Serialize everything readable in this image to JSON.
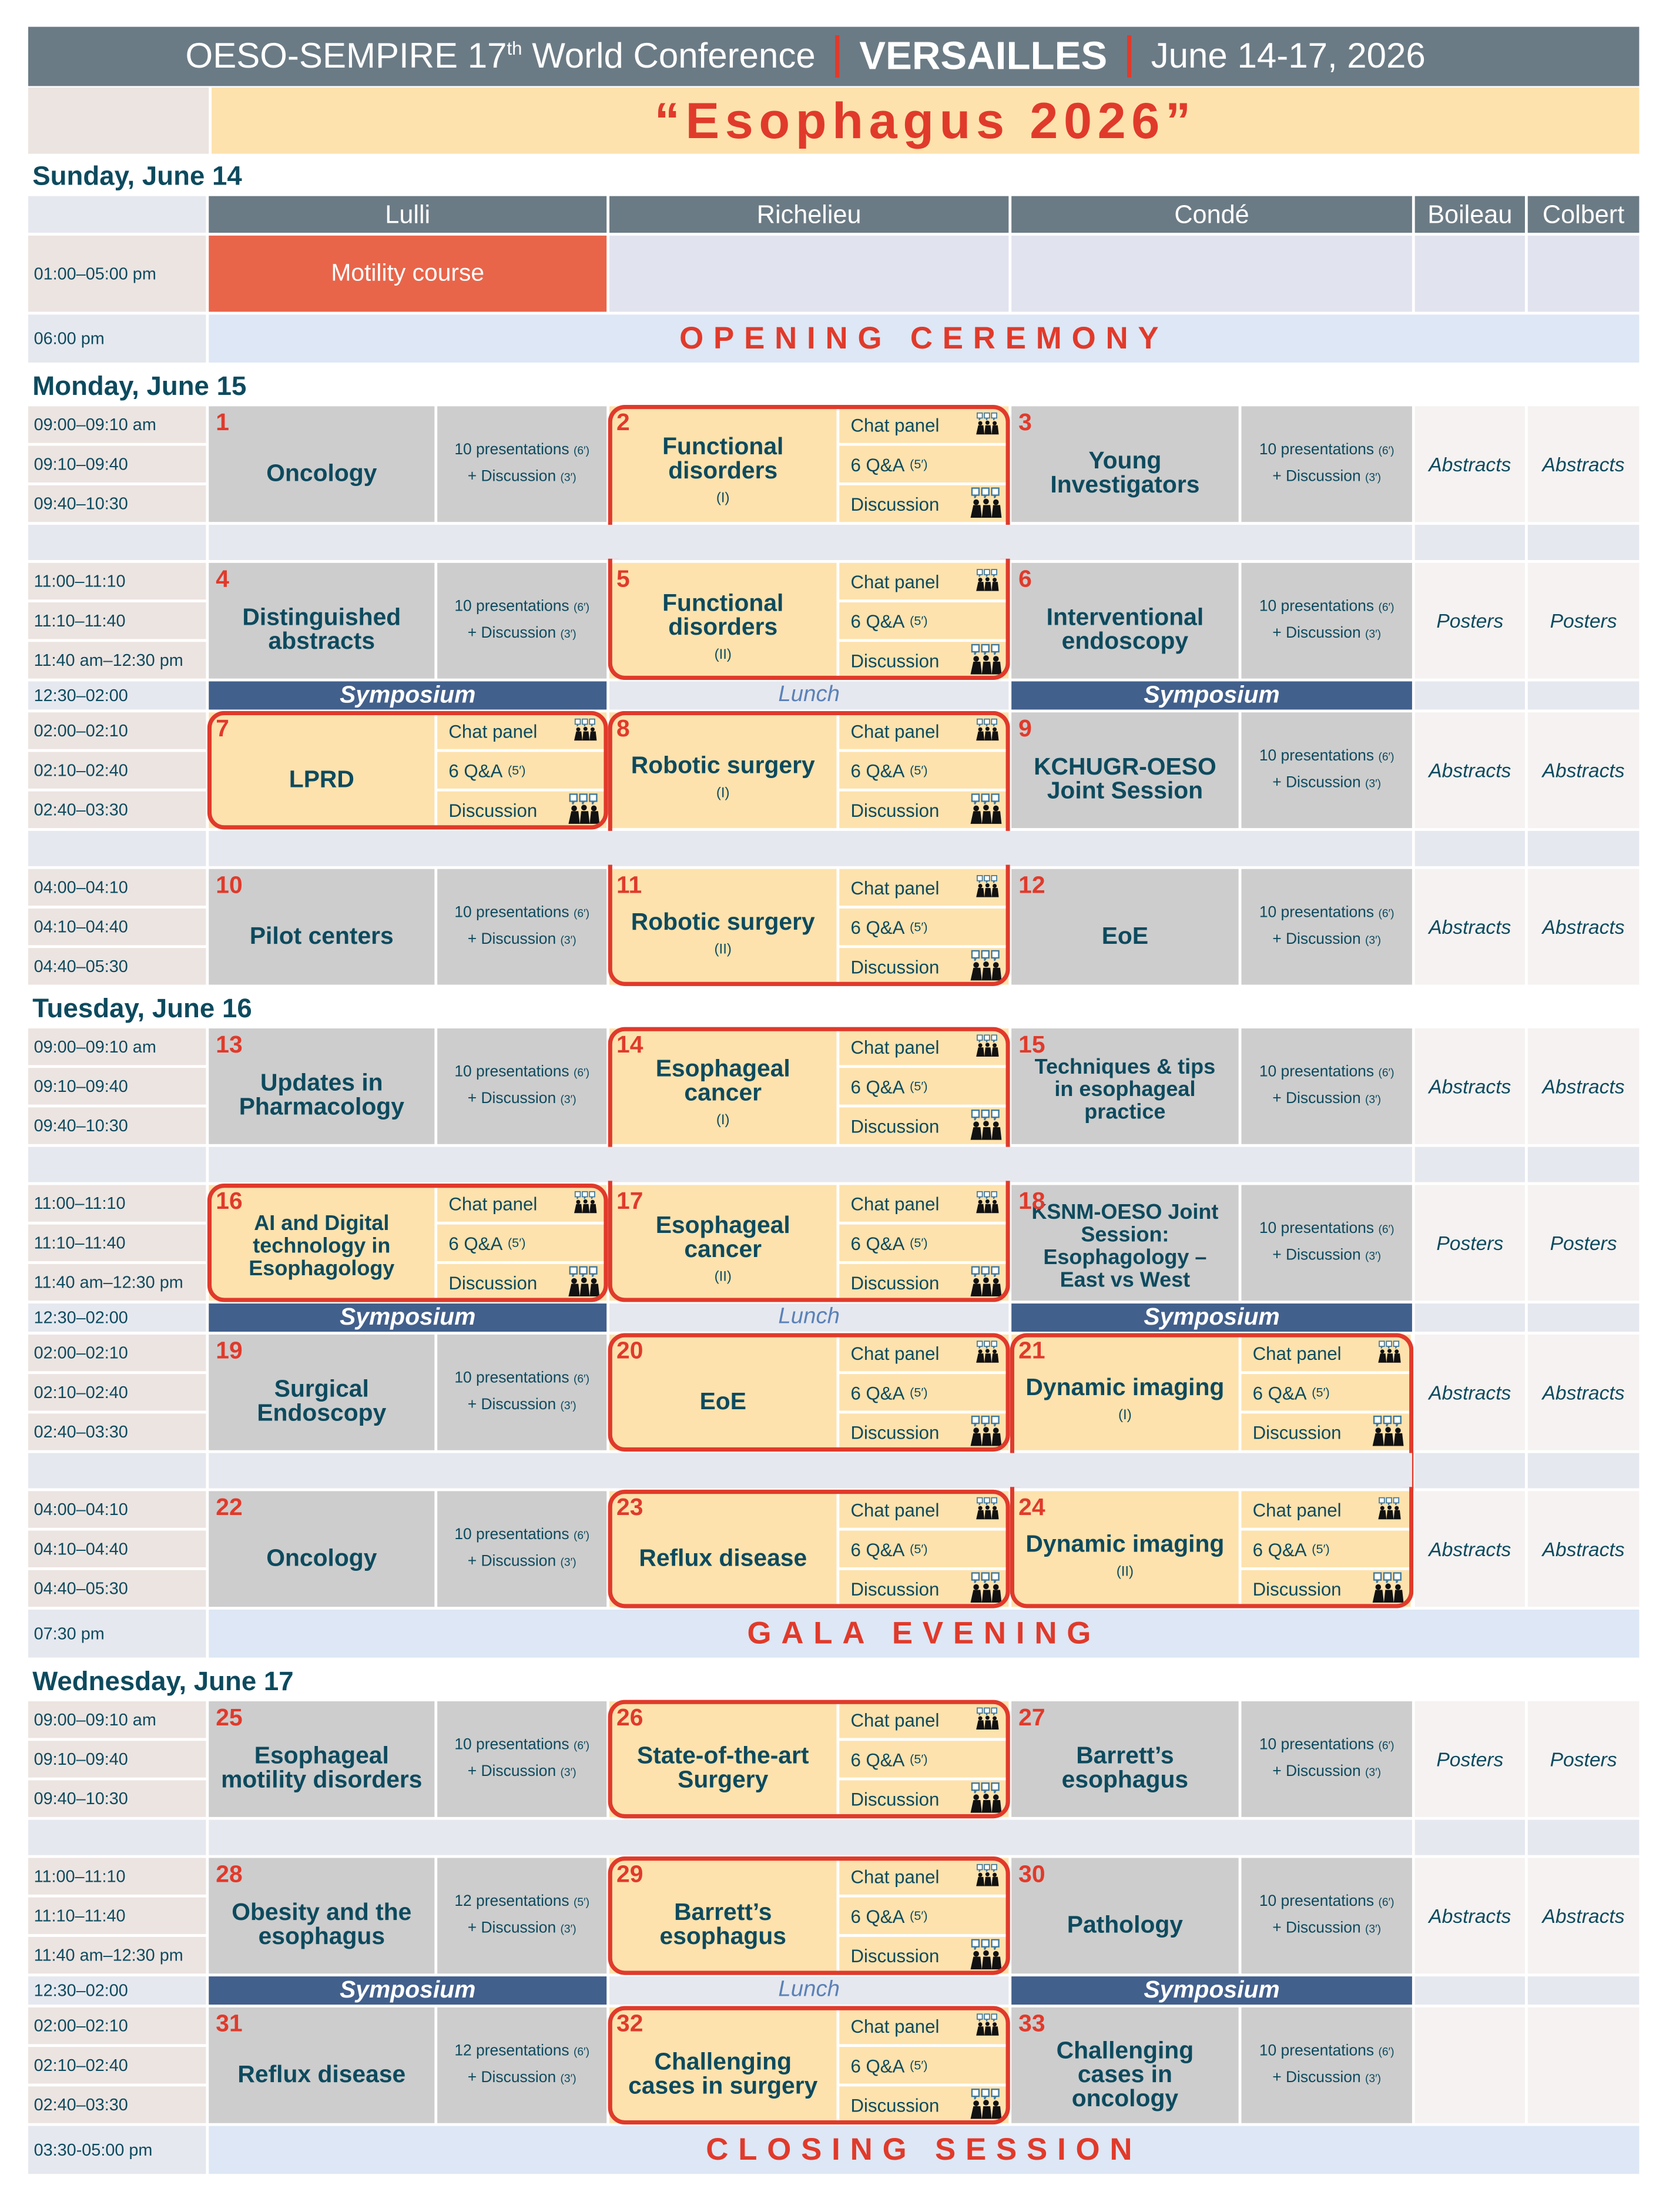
{
  "header": {
    "conference_prefix": "OESO-SEMPIRE 17",
    "ordinal": "th",
    "conference_suffix": "World Conference",
    "city": "VERSAILLES",
    "dates": "June 14-17, 2026"
  },
  "title": "“Esophagus 2026”",
  "rooms": {
    "lulli": "Lulli",
    "richelieu": "Richelieu",
    "conde": "Condé",
    "boileau": "Boileau",
    "colbert": "Colbert"
  },
  "chat_labels": {
    "chat_panel": "Chat panel",
    "qa": "6 Q&A",
    "qa_duration": "(5′)",
    "discussion": "Discussion",
    "chat_icon": "chat-panel-icon",
    "discussion_icon": "discussion-icon"
  },
  "colors": {
    "header": "#6b7b85",
    "accent": "#e03a2b",
    "text": "#0d4a5e",
    "highlight": "#fde2ad",
    "symposium": "#42608c",
    "course": "#e8654a"
  },
  "days": [
    {
      "label": "Sunday, June 14",
      "rows": [
        {
          "kind": "colhdr"
        },
        {
          "kind": "course",
          "time": "01:00–05:00 pm",
          "lulli": "Motility course"
        },
        {
          "kind": "banner",
          "time": "06:00 pm",
          "text": "OPENING CEREMONY"
        }
      ]
    },
    {
      "label": "Monday, June 15",
      "rows": [
        {
          "kind": "block",
          "times": [
            "09:00–09:10 am",
            "09:10–09:40",
            "09:40–10:30"
          ],
          "sessions": [
            {
              "style": "standard",
              "number": "1",
              "title": "Oncology",
              "details": [
                "10 presentations",
                "(6′)",
                "+ Discussion",
                "(3′)"
              ]
            },
            {
              "style": "chat",
              "number": "2",
              "title": "Functional disorders",
              "part": "(I)",
              "joined_with_next": true
            },
            {
              "style": "standard",
              "number": "3",
              "title": "Young Investigators",
              "details": [
                "10 presentations",
                "(6′)",
                "+ Discussion",
                "(3′)"
              ]
            }
          ],
          "boileau": "Abstracts",
          "colbert": "Abstracts"
        },
        {
          "kind": "gap"
        },
        {
          "kind": "block",
          "times": [
            "11:00–11:10",
            "11:10–11:40",
            "11:40 am–12:30 pm"
          ],
          "sessions": [
            {
              "style": "light",
              "number": "4",
              "title": "Distinguished abstracts",
              "details": [
                "10 presentations",
                "(6′)",
                "+ Discussion",
                "(3′)"
              ]
            },
            {
              "style": "chat",
              "number": "5",
              "title": "Functional disorders",
              "part": "(II)"
            },
            {
              "style": "standard",
              "number": "6",
              "title": "Interventional endoscopy",
              "details": [
                "10 presentations",
                "(6′)",
                "+ Discussion",
                "(3′)"
              ]
            }
          ],
          "boileau": "Posters",
          "colbert": "Posters"
        },
        {
          "kind": "break",
          "time": "12:30–02:00",
          "lulli": "Symposium",
          "richelieu": "Lunch",
          "conde": "Symposium"
        },
        {
          "kind": "block",
          "times": [
            "02:00–02:10",
            "02:10–02:40",
            "02:40–03:30"
          ],
          "sessions": [
            {
              "style": "chat",
              "number": "7",
              "title": "LPRD"
            },
            {
              "style": "chat",
              "number": "8",
              "title": "Robotic surgery",
              "part": "(I)",
              "joined_with_next": true
            },
            {
              "style": "standard",
              "number": "9",
              "title": "KCHUGR-OESO Joint Session",
              "details": [
                "10 presentations",
                "(6′)",
                "+ Discussion",
                "(3′)"
              ]
            }
          ],
          "boileau": "Abstracts",
          "colbert": "Abstracts"
        },
        {
          "kind": "gap"
        },
        {
          "kind": "block",
          "times": [
            "04:00–04:10",
            "04:10–04:40",
            "04:40–05:30"
          ],
          "sessions": [
            {
              "style": "standard",
              "number": "10",
              "title": "Pilot centers",
              "details": [
                "10 presentations",
                "(6′)",
                "+ Discussion",
                "(3′)"
              ]
            },
            {
              "style": "chat",
              "number": "11",
              "title": "Robotic surgery",
              "part": "(II)"
            },
            {
              "style": "standard",
              "number": "12",
              "title": "EoE",
              "details": [
                "10 presentations",
                "(6′)",
                "+ Discussion",
                "(3′)"
              ]
            }
          ],
          "boileau": "Abstracts",
          "colbert": "Abstracts"
        }
      ]
    },
    {
      "label": "Tuesday, June 16",
      "rows": [
        {
          "kind": "block",
          "times": [
            "09:00–09:10 am",
            "09:10–09:40",
            "09:40–10:30"
          ],
          "sessions": [
            {
              "style": "standard",
              "number": "13",
              "title": "Updates in Pharmacology",
              "details": [
                "10 presentations",
                "(6′)",
                "+ Discussion",
                "(3′)"
              ]
            },
            {
              "style": "chat",
              "number": "14",
              "title": "Esophageal cancer",
              "part": "(I)",
              "joined_with_next": true
            },
            {
              "style": "standard",
              "number": "15",
              "title": "Techniques & tips in esophageal practice",
              "details": [
                "10 presentations",
                "(6′)",
                "+ Discussion",
                "(3′)"
              ]
            }
          ],
          "boileau": "Abstracts",
          "colbert": "Abstracts"
        },
        {
          "kind": "gap"
        },
        {
          "kind": "block",
          "times": [
            "11:00–11:10",
            "11:10–11:40",
            "11:40 am–12:30 pm"
          ],
          "sessions": [
            {
              "style": "chat",
              "number": "16",
              "title": "AI and Digital technology in Esophagology"
            },
            {
              "style": "chat",
              "number": "17",
              "title": "Esophageal cancer",
              "part": "(II)"
            },
            {
              "style": "standard",
              "number": "18",
              "title": "KSNM-OESO Joint Session: Esophagology – East vs West",
              "details": [
                "10 presentations",
                "(6′)",
                "+ Discussion",
                "(3′)"
              ]
            }
          ],
          "boileau": "Posters",
          "colbert": "Posters"
        },
        {
          "kind": "break",
          "time": "12:30–02:00",
          "lulli": "Symposium",
          "richelieu": "Lunch",
          "conde": "Symposium"
        },
        {
          "kind": "block",
          "times": [
            "02:00–02:10",
            "02:10–02:40",
            "02:40–03:30"
          ],
          "sessions": [
            {
              "style": "standard",
              "number": "19",
              "title": "Surgical Endoscopy",
              "details": [
                "10 presentations",
                "(6′)",
                "+ Discussion",
                "(3′)"
              ]
            },
            {
              "style": "chat",
              "number": "20",
              "title": "EoE"
            },
            {
              "style": "chat",
              "number": "21",
              "title": "Dynamic imaging",
              "part": "(I)",
              "joined_with_next": true
            }
          ],
          "boileau": "Abstracts",
          "colbert": "Abstracts"
        },
        {
          "kind": "gap"
        },
        {
          "kind": "block",
          "times": [
            "04:00–04:10",
            "04:10–04:40",
            "04:40–05:30"
          ],
          "sessions": [
            {
              "style": "standard",
              "number": "22",
              "title": "Oncology",
              "details": [
                "10 presentations",
                "(6′)",
                "+ Discussion",
                "(3′)"
              ]
            },
            {
              "style": "chat",
              "number": "23",
              "title": "Reflux disease"
            },
            {
              "style": "chat",
              "number": "24",
              "title": "Dynamic imaging",
              "part": "(II)"
            }
          ],
          "boileau": "Abstracts",
          "colbert": "Abstracts"
        },
        {
          "kind": "banner",
          "time": "07:30 pm",
          "text": "GALA EVENING"
        }
      ]
    },
    {
      "label": "Wednesday, June 17",
      "rows": [
        {
          "kind": "block",
          "times": [
            "09:00–09:10 am",
            "09:10–09:40",
            "09:40–10:30"
          ],
          "sessions": [
            {
              "style": "standard",
              "number": "25",
              "title": "Esophageal motility disorders",
              "details": [
                "10 presentations",
                "(6′)",
                "+ Discussion",
                "(3′)"
              ]
            },
            {
              "style": "chat",
              "number": "26",
              "title": "State-of-the-art Surgery"
            },
            {
              "style": "standard",
              "number": "27",
              "title": "Barrett’s esophagus",
              "details": [
                "10 presentations",
                "(6′)",
                "+ Discussion",
                "(3′)"
              ]
            }
          ],
          "boileau": "Posters",
          "colbert": "Posters"
        },
        {
          "kind": "gap"
        },
        {
          "kind": "block",
          "times": [
            "11:00–11:10",
            "11:10–11:40",
            "11:40 am–12:30 pm"
          ],
          "sessions": [
            {
              "style": "standard",
              "number": "28",
              "title": "Obesity and the esophagus",
              "details": [
                "12 presentations",
                "(5′)",
                "+ Discussion",
                "(3′)"
              ]
            },
            {
              "style": "chat",
              "number": "29",
              "title": "Barrett’s esophagus"
            },
            {
              "style": "standard",
              "number": "30",
              "title": "Pathology",
              "details": [
                "10 presentations",
                "(6′)",
                "+ Discussion",
                "(3′)"
              ]
            }
          ],
          "boileau": "Abstracts",
          "colbert": "Abstracts"
        },
        {
          "kind": "break",
          "time": "12:30–02:00",
          "lulli": "Symposium",
          "richelieu": "Lunch",
          "conde": "Symposium"
        },
        {
          "kind": "block",
          "times": [
            "02:00–02:10",
            "02:10–02:40",
            "02:40–03:30"
          ],
          "sessions": [
            {
              "style": "standard",
              "number": "31",
              "title": "Reflux disease",
              "details": [
                "12 presentations",
                "(6′)",
                "+ Discussion",
                "(3′)"
              ]
            },
            {
              "style": "chat",
              "number": "32",
              "title": "Challenging cases in surgery"
            },
            {
              "style": "standard",
              "number": "33",
              "title": "Challenging cases in oncology",
              "details": [
                "10 presentations",
                "(6′)",
                "+ Discussion",
                "(3′)"
              ]
            }
          ]
        },
        {
          "kind": "banner",
          "time": "03:30-05:00 pm",
          "text": "CLOSING SESSION"
        }
      ]
    }
  ]
}
